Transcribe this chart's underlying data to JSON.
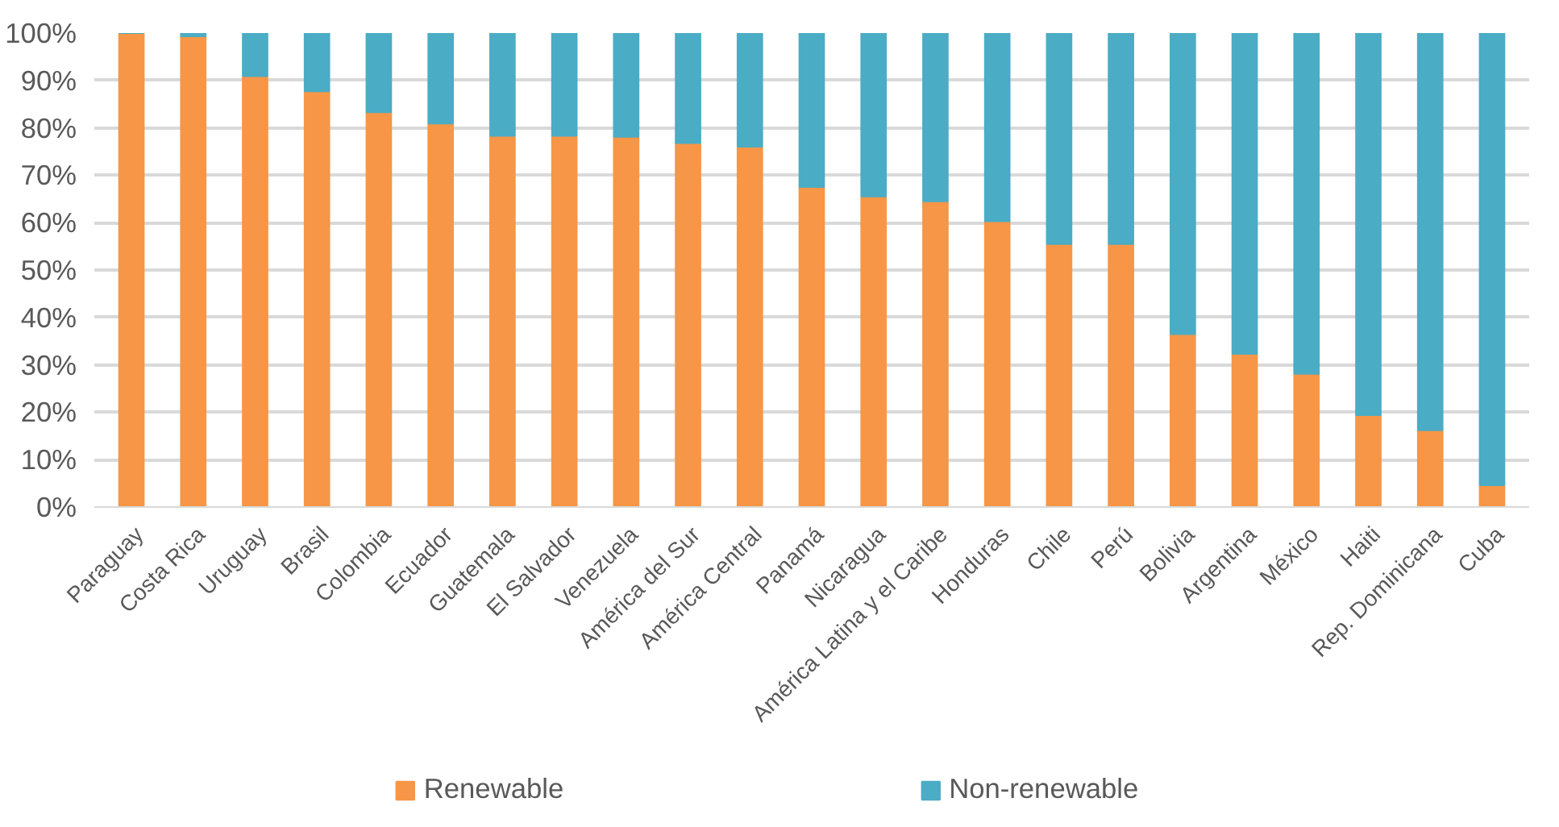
{
  "chart_data": {
    "type": "bar",
    "stacked": true,
    "categories": [
      "Paraguay",
      "Costa Rica",
      "Uruguay",
      "Brasil",
      "Colombia",
      "Ecuador",
      "Guatemala",
      "El Salvador",
      "Venezuela",
      "América del Sur",
      "América Central",
      "Panamá",
      "Nicaragua",
      "América Latina y el Caribe",
      "Honduras",
      "Chile",
      "Perú",
      "Bolivia",
      "Argentina",
      "México",
      "Haiti",
      "Rep. Dominicana",
      "Cuba"
    ],
    "series": [
      {
        "name": "Renewable",
        "color": "#f79646",
        "values": [
          100,
          99.3,
          90.9,
          87.7,
          83.3,
          80.9,
          78.3,
          78.3,
          78.1,
          76.8,
          76.0,
          67.5,
          65.5,
          64.5,
          60.3,
          55.5,
          55.5,
          36.5,
          32.3,
          28.1,
          19.4,
          16.2,
          4.6
        ]
      },
      {
        "name": "Non-renewable",
        "color": "#4bacc6",
        "values": [
          0,
          0.7,
          9.1,
          12.3,
          16.7,
          19.1,
          21.7,
          21.7,
          21.9,
          23.2,
          24.0,
          32.5,
          34.5,
          35.5,
          39.7,
          44.5,
          44.5,
          63.5,
          67.7,
          71.9,
          80.6,
          83.8,
          95.4
        ]
      }
    ],
    "ylim": [
      0,
      100
    ],
    "yticks": [
      {
        "value": 0,
        "label": "0%"
      },
      {
        "value": 10,
        "label": "10%"
      },
      {
        "value": 20,
        "label": "20%"
      },
      {
        "value": 30,
        "label": "30%"
      },
      {
        "value": 40,
        "label": "40%"
      },
      {
        "value": 50,
        "label": "50%"
      },
      {
        "value": 60,
        "label": "60%"
      },
      {
        "value": 70,
        "label": "70%"
      },
      {
        "value": 80,
        "label": "80%"
      },
      {
        "value": 90,
        "label": "90%"
      },
      {
        "value": 100,
        "label": "100%"
      }
    ],
    "grid": "y",
    "legend": "bottom"
  }
}
